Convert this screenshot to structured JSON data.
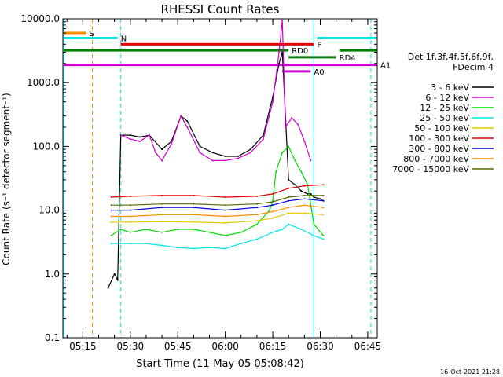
{
  "chart_data": {
    "type": "line",
    "title": "RHESSI Count Rates",
    "xlabel": "Start Time (11-May-05 05:08:42)",
    "ylabel": "Count Rate (s⁻¹ detector segment⁻¹)",
    "y_scale": "log",
    "ylim": [
      0.1,
      10000
    ],
    "xlim": [
      "05:08:42",
      "06:48:00"
    ],
    "x_ticks": [
      "05:15",
      "05:30",
      "05:45",
      "06:00",
      "06:15",
      "06:30",
      "06:45"
    ],
    "y_ticks": [
      "0.1",
      "1.0",
      "10.0",
      "100.0",
      "1000.0",
      "10000.0"
    ],
    "timestamp": "16-Oct-2021 21:28",
    "legend_header": [
      "Det 1f,3f,4f,5f,6f,9f,",
      "FDecim 4"
    ],
    "legend_placement": "right",
    "series": [
      {
        "name": "3 - 6 keV",
        "color": "#000000",
        "x": [
          "05:23",
          "05:25",
          "05:26",
          "05:27",
          "05:30",
          "05:33",
          "05:36",
          "05:40",
          "05:43",
          "05:46",
          "05:48",
          "05:52",
          "05:56",
          "06:00",
          "06:04",
          "06:08",
          "06:12",
          "06:15",
          "06:17",
          "06:18",
          "06:20",
          "06:22",
          "06:24",
          "06:26",
          "06:27",
          "06:28",
          "06:30",
          "06:31"
        ],
        "y": [
          0.6,
          1.0,
          0.8,
          150,
          150,
          140,
          150,
          90,
          120,
          300,
          250,
          100,
          80,
          70,
          70,
          90,
          150,
          600,
          2000,
          3000,
          30,
          25,
          20,
          18,
          18,
          16,
          15,
          14
        ]
      },
      {
        "name": "6 - 12 keV",
        "color": "#d000d0",
        "x": [
          "05:27",
          "05:30",
          "05:33",
          "05:36",
          "05:38",
          "05:40",
          "05:43",
          "05:46",
          "05:48",
          "05:52",
          "05:56",
          "06:00",
          "06:04",
          "06:08",
          "06:12",
          "06:15",
          "06:17",
          "06:18",
          "06:19",
          "06:21",
          "06:23",
          "06:25",
          "06:27"
        ],
        "y": [
          150,
          130,
          120,
          150,
          80,
          60,
          110,
          300,
          200,
          80,
          60,
          60,
          65,
          80,
          130,
          500,
          3000,
          9500,
          200,
          280,
          220,
          120,
          60
        ]
      },
      {
        "name": "12 - 25 keV",
        "color": "#00dd00",
        "x": [
          "05:24",
          "05:27",
          "05:30",
          "05:35",
          "05:40",
          "05:45",
          "05:50",
          "05:55",
          "06:00",
          "06:05",
          "06:10",
          "06:14",
          "06:15",
          "06:16",
          "06:18",
          "06:20",
          "06:22",
          "06:24",
          "06:26",
          "06:28",
          "06:31"
        ],
        "y": [
          4,
          5,
          4.5,
          5,
          4.5,
          5,
          5,
          4.5,
          4,
          4.5,
          6,
          10,
          14,
          40,
          80,
          100,
          60,
          40,
          25,
          6,
          4
        ]
      },
      {
        "name": "25 - 50 keV",
        "color": "#00e6e6",
        "x": [
          "05:24",
          "05:27",
          "05:30",
          "05:35",
          "05:40",
          "05:45",
          "05:50",
          "05:55",
          "06:00",
          "06:05",
          "06:10",
          "06:15",
          "06:18",
          "06:20",
          "06:24",
          "06:28",
          "06:31"
        ],
        "y": [
          3,
          3,
          3,
          3,
          2.8,
          2.6,
          2.5,
          2.6,
          2.5,
          3,
          3.5,
          4.5,
          5,
          6,
          5,
          4,
          3.5
        ]
      },
      {
        "name": "50 - 100 keV",
        "color": "#e0c800",
        "x": [
          "05:24",
          "05:30",
          "05:40",
          "05:50",
          "06:00",
          "06:10",
          "06:15",
          "06:20",
          "06:25",
          "06:31"
        ],
        "y": [
          6.5,
          6.5,
          6.6,
          6.5,
          6.3,
          6.8,
          7.5,
          9,
          9,
          8.5
        ]
      },
      {
        "name": "100 - 300 keV",
        "color": "#e00000",
        "x": [
          "05:24",
          "05:30",
          "05:40",
          "05:50",
          "06:00",
          "06:10",
          "06:15",
          "06:20",
          "06:25",
          "06:31"
        ],
        "y": [
          16,
          16.5,
          17,
          17,
          16,
          16.5,
          18,
          22,
          24,
          25
        ]
      },
      {
        "name": "300 - 800 keV",
        "color": "#0000dd",
        "x": [
          "05:24",
          "05:30",
          "05:40",
          "05:50",
          "06:00",
          "06:10",
          "06:15",
          "06:20",
          "06:25",
          "06:31"
        ],
        "y": [
          10,
          10,
          11,
          11,
          10,
          11,
          12,
          14,
          15,
          14
        ]
      },
      {
        "name": "800 - 7000 keV",
        "color": "#ff8c00",
        "x": [
          "05:24",
          "05:30",
          "05:40",
          "05:50",
          "06:00",
          "06:10",
          "06:15",
          "06:20",
          "06:25",
          "06:31"
        ],
        "y": [
          8,
          8,
          8.5,
          8.5,
          8,
          8.5,
          9.5,
          11,
          12,
          11
        ]
      },
      {
        "name": "7000 - 15000 keV",
        "color": "#556b00",
        "x": [
          "05:24",
          "05:30",
          "05:40",
          "05:50",
          "06:00",
          "06:10",
          "06:15",
          "06:20",
          "06:25",
          "06:31"
        ],
        "y": [
          12,
          12,
          12.5,
          12.5,
          12,
          12.5,
          13.5,
          16,
          17,
          17
        ]
      }
    ],
    "flag_bars": [
      {
        "label": "S",
        "color": "#ff8c00",
        "start": "05:09",
        "end": "05:16",
        "y": 6000
      },
      {
        "label": "N",
        "color": "#00e6e6",
        "start": "05:09",
        "end": "05:26",
        "y": 5000
      },
      {
        "label": "",
        "color": "#00e6e6",
        "start": "06:29",
        "end": "06:48",
        "y": 5000
      },
      {
        "label": "F",
        "color": "#e00000",
        "start": "05:27",
        "end": "06:28",
        "y": 4000
      },
      {
        "label": "RD0",
        "color": "#008000",
        "start": "05:09",
        "end": "06:20",
        "y": 3200
      },
      {
        "label": "RD4",
        "color": "#008000",
        "start": "06:20",
        "end": "06:35",
        "y": 2500
      },
      {
        "label": "",
        "color": "#008000",
        "start": "06:36",
        "end": "06:48",
        "y": 3200
      },
      {
        "label": "A1",
        "color": "#d000d0",
        "start": "05:09",
        "end": "06:48",
        "y": 1900
      },
      {
        "label": "A0",
        "color": "#d000d0",
        "start": "06:18",
        "end": "06:27",
        "y": 1500
      }
    ],
    "vertical_lines": [
      {
        "time": "05:18",
        "color": "#ff8c00",
        "style": "dashed"
      },
      {
        "time": "05:27",
        "color": "#00e6e6",
        "style": "dashed"
      },
      {
        "time": "06:28",
        "color": "#00e6e6",
        "style": "solid"
      },
      {
        "time": "06:46",
        "color": "#00e6e6",
        "style": "dashed"
      },
      {
        "time": "05:09",
        "color": "#00e6e6",
        "style": "solid"
      }
    ]
  }
}
